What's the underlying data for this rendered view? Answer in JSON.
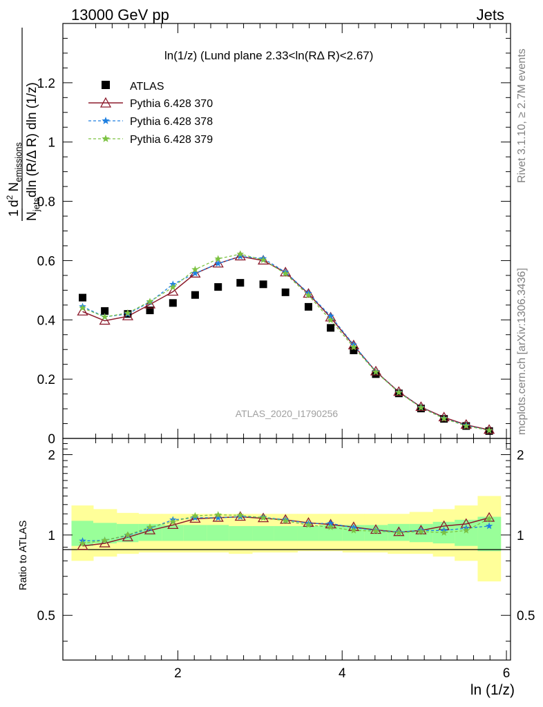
{
  "header": {
    "left": "13000 GeV pp",
    "right": "Jets"
  },
  "plot_title": "ln(1/z) (Lund plane 2.33<ln(RΔ R)<2.67)",
  "side_labels": {
    "rivet": "Rivet 3.1.10, ≥ 2.7M events",
    "mcplots": "mcplots.cern.ch [arXiv:1306.3436]"
  },
  "watermark": "ATLAS_2020_I1790256",
  "ylabel_main": "1/N_jets dln (R/Δ R) dln (1/z) · d² N_emissions",
  "ylabel_ratio": "Ratio to ATLAS",
  "xlabel": "ln (1/z)",
  "colors": {
    "data": "#000000",
    "p370": "#8b1a2b",
    "p378": "#1e7fe0",
    "p379": "#7cc242",
    "band_inner": "#99ff99",
    "band_outer": "#ffff99"
  },
  "chart_data": [
    {
      "type": "scatter",
      "panel": "main",
      "xlim": [
        0.6,
        6.05
      ],
      "ylim": [
        0,
        1.4
      ],
      "yticks": [
        "0",
        "0.2",
        "0.4",
        "0.6",
        "0.8",
        "1",
        "1.2"
      ],
      "xticks": [
        "2",
        "4",
        "6"
      ],
      "x": [
        0.84,
        1.11,
        1.39,
        1.66,
        1.94,
        2.21,
        2.49,
        2.76,
        3.04,
        3.31,
        3.59,
        3.86,
        4.14,
        4.41,
        4.69,
        4.96,
        5.24,
        5.51,
        5.79
      ],
      "series": [
        {
          "name": "ATLAS",
          "marker": "square",
          "values": [
            0.475,
            0.43,
            0.42,
            0.432,
            0.457,
            0.484,
            0.511,
            0.525,
            0.52,
            0.493,
            0.444,
            0.373,
            0.297,
            0.217,
            0.152,
            0.101,
            0.066,
            0.042,
            0.025
          ]
        },
        {
          "name": "Pythia 6.428 370",
          "marker": "triangle",
          "values": [
            0.428,
            0.397,
            0.412,
            0.452,
            0.495,
            0.556,
            0.59,
            0.614,
            0.6,
            0.56,
            0.488,
            0.408,
            0.314,
            0.226,
            0.157,
            0.106,
            0.071,
            0.046,
            0.029
          ]
        },
        {
          "name": "Pythia 6.428 378",
          "marker": "star",
          "values": [
            0.445,
            0.41,
            0.42,
            0.46,
            0.52,
            0.557,
            0.59,
            0.614,
            0.607,
            0.561,
            0.49,
            0.413,
            0.316,
            0.225,
            0.156,
            0.105,
            0.068,
            0.044,
            0.027
          ]
        },
        {
          "name": "Pythia 6.428 379",
          "marker": "star",
          "values": [
            0.44,
            0.41,
            0.423,
            0.462,
            0.51,
            0.57,
            0.606,
            0.622,
            0.602,
            0.556,
            0.483,
            0.399,
            0.308,
            0.224,
            0.155,
            0.104,
            0.067,
            0.042,
            0.027
          ]
        }
      ]
    },
    {
      "type": "line",
      "panel": "ratio",
      "xlim": [
        0.6,
        6.05
      ],
      "ylim": [
        0.34,
        2.3
      ],
      "yticks": [
        "0.5",
        "1",
        "2"
      ],
      "xticks": [
        "2",
        "4",
        "6"
      ],
      "reference_line": 1,
      "x": [
        0.84,
        1.11,
        1.39,
        1.66,
        1.94,
        2.21,
        2.49,
        2.76,
        3.04,
        3.31,
        3.59,
        3.86,
        4.14,
        4.41,
        4.69,
        4.96,
        5.24,
        5.51,
        5.79
      ],
      "band_inner": {
        "lo": [
          0.91,
          0.93,
          0.94,
          0.95,
          0.95,
          0.95,
          0.95,
          0.95,
          0.95,
          0.95,
          0.95,
          0.95,
          0.95,
          0.95,
          0.95,
          0.94,
          0.93,
          0.91,
          0.87
        ],
        "hi": [
          1.13,
          1.11,
          1.1,
          1.1,
          1.09,
          1.09,
          1.09,
          1.08,
          1.08,
          1.08,
          1.08,
          1.09,
          1.09,
          1.09,
          1.1,
          1.1,
          1.12,
          1.14,
          1.17
        ]
      },
      "band_outer": {
        "lo": [
          0.8,
          0.83,
          0.85,
          0.86,
          0.86,
          0.86,
          0.86,
          0.85,
          0.86,
          0.86,
          0.87,
          0.87,
          0.86,
          0.86,
          0.85,
          0.85,
          0.83,
          0.8,
          0.67
        ]
      },
      "band_outer_hi": [
        1.29,
        1.25,
        1.21,
        1.2,
        1.2,
        1.2,
        1.2,
        1.2,
        1.2,
        1.2,
        1.2,
        1.2,
        1.2,
        1.2,
        1.2,
        1.22,
        1.25,
        1.29,
        1.4
      ],
      "series": [
        {
          "name": "Pythia 6.428 370",
          "values": [
            0.91,
            0.93,
            0.98,
            1.04,
            1.09,
            1.15,
            1.16,
            1.17,
            1.155,
            1.14,
            1.11,
            1.095,
            1.07,
            1.045,
            1.025,
            1.04,
            1.08,
            1.1,
            1.16
          ]
        },
        {
          "name": "Pythia 6.428 378",
          "values": [
            0.95,
            0.955,
            0.995,
            1.06,
            1.14,
            1.16,
            1.16,
            1.17,
            1.165,
            1.14,
            1.105,
            1.105,
            1.065,
            1.04,
            1.025,
            1.04,
            1.04,
            1.06,
            1.08
          ]
        },
        {
          "name": "Pythia 6.428 379",
          "values": [
            0.93,
            0.955,
            1.0,
            1.07,
            1.12,
            1.18,
            1.19,
            1.185,
            1.16,
            1.13,
            1.09,
            1.07,
            1.04,
            1.035,
            1.02,
            1.03,
            1.02,
            1.04,
            1.15
          ]
        }
      ]
    }
  ]
}
